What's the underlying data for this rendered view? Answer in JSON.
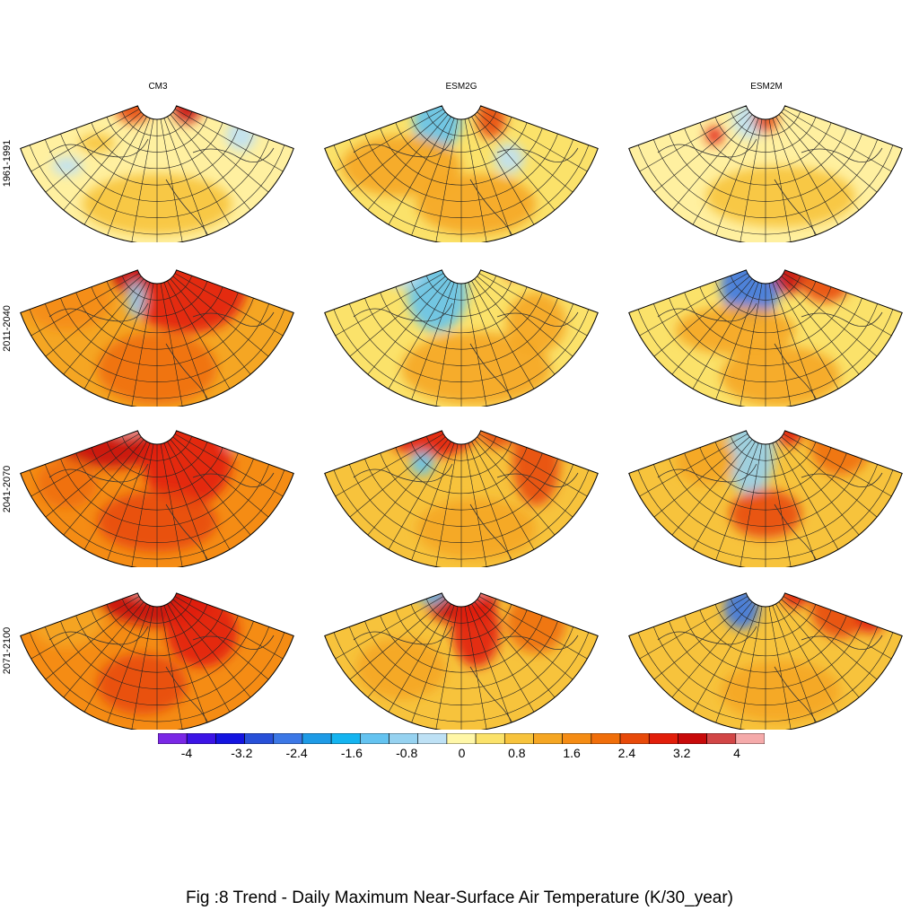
{
  "caption": "Fig :8  Trend  - Daily Maximum Near-Surface Air Temperature (K/30_year)",
  "columns": [
    "CM3",
    "ESM2G",
    "ESM2M"
  ],
  "rows": [
    "1961-1991",
    "2011-2040",
    "2041-2070",
    "2071-2100"
  ],
  "colorbar": {
    "ticks": [
      "-4",
      "-3.2",
      "-2.4",
      "-1.6",
      "-0.8",
      "0",
      "0.8",
      "1.6",
      "2.4",
      "3.2",
      "4"
    ],
    "colors": [
      "#7a28e6",
      "#3c14e6",
      "#1414e0",
      "#2850d8",
      "#3c78e6",
      "#1e9be6",
      "#14b4f0",
      "#64c3f0",
      "#96d2f0",
      "#bee1f5",
      "#fff7a8",
      "#fbe26a",
      "#f7c33c",
      "#f5a623",
      "#f58c14",
      "#f06e0a",
      "#e84a0a",
      "#e21e0a",
      "#c80a0a",
      "#d24646",
      "#f5aaaa"
    ]
  },
  "panels": [
    {
      "row": 0,
      "col": 0,
      "base": "#fff0a0",
      "blobs": [
        [
          0.42,
          0.12,
          0.06,
          0.05,
          "#e84a0a"
        ],
        [
          0.6,
          0.1,
          0.05,
          0.06,
          "#c80a0a"
        ],
        [
          0.3,
          0.35,
          0.06,
          0.03,
          "#f7c33c"
        ],
        [
          0.5,
          0.75,
          0.25,
          0.1,
          "#f7c33c"
        ],
        [
          0.78,
          0.3,
          0.05,
          0.05,
          "#bee1f5"
        ],
        [
          0.2,
          0.5,
          0.05,
          0.03,
          "#bee1f5"
        ]
      ]
    },
    {
      "row": 0,
      "col": 1,
      "base": "#fbe26a",
      "blobs": [
        [
          0.42,
          0.2,
          0.08,
          0.1,
          "#64c3f0"
        ],
        [
          0.3,
          0.5,
          0.2,
          0.1,
          "#f5a623"
        ],
        [
          0.6,
          0.18,
          0.05,
          0.07,
          "#e84a0a"
        ],
        [
          0.55,
          0.75,
          0.2,
          0.1,
          "#f5a623"
        ],
        [
          0.66,
          0.45,
          0.05,
          0.05,
          "#bee1f5"
        ]
      ]
    },
    {
      "row": 0,
      "col": 2,
      "base": "#fff0a0",
      "blobs": [
        [
          0.33,
          0.3,
          0.03,
          0.03,
          "#e21e0a"
        ],
        [
          0.45,
          0.2,
          0.06,
          0.06,
          "#bee1f5"
        ],
        [
          0.82,
          0.15,
          0.07,
          0.05,
          "#bee1f5"
        ],
        [
          0.55,
          0.7,
          0.25,
          0.1,
          "#f7c33c"
        ],
        [
          0.5,
          0.2,
          0.04,
          0.04,
          "#e84a0a"
        ]
      ]
    },
    {
      "row": 1,
      "col": 0,
      "base": "#f5a623",
      "blobs": [
        [
          0.6,
          0.22,
          0.2,
          0.15,
          "#e21e0a"
        ],
        [
          0.42,
          0.12,
          0.08,
          0.07,
          "#c80a0a"
        ],
        [
          0.5,
          0.75,
          0.2,
          0.12,
          "#f06e0a"
        ],
        [
          0.43,
          0.3,
          0.03,
          0.06,
          "#96d2f0"
        ],
        [
          0.2,
          0.3,
          0.15,
          0.1,
          "#f58c14"
        ]
      ]
    },
    {
      "row": 1,
      "col": 1,
      "base": "#fbe26a",
      "blobs": [
        [
          0.42,
          0.25,
          0.1,
          0.13,
          "#64c3f0"
        ],
        [
          0.3,
          0.12,
          0.07,
          0.05,
          "#bee1f5"
        ],
        [
          0.55,
          0.75,
          0.25,
          0.12,
          "#f5a623"
        ],
        [
          0.75,
          0.45,
          0.1,
          0.1,
          "#f5a623"
        ],
        [
          0.67,
          0.1,
          0.02,
          0.03,
          "#e21e0a"
        ]
      ]
    },
    {
      "row": 1,
      "col": 2,
      "base": "#fbe26a",
      "blobs": [
        [
          0.45,
          0.2,
          0.1,
          0.12,
          "#3c78e6"
        ],
        [
          0.58,
          0.1,
          0.06,
          0.08,
          "#c80a0a"
        ],
        [
          0.7,
          0.2,
          0.08,
          0.06,
          "#e84a0a"
        ],
        [
          0.4,
          0.5,
          0.2,
          0.08,
          "#f5a623"
        ],
        [
          0.55,
          0.8,
          0.2,
          0.1,
          "#f5a623"
        ]
      ]
    },
    {
      "row": 2,
      "col": 0,
      "base": "#f58c14",
      "blobs": [
        [
          0.35,
          0.15,
          0.2,
          0.1,
          "#c80a0a"
        ],
        [
          0.6,
          0.3,
          0.15,
          0.15,
          "#e21e0a"
        ],
        [
          0.5,
          0.7,
          0.2,
          0.1,
          "#e84a0a"
        ],
        [
          0.4,
          0.06,
          0.08,
          0.04,
          "#f5aaaa"
        ],
        [
          0.75,
          0.12,
          0.03,
          0.06,
          "#f5aaaa"
        ],
        [
          0.2,
          0.45,
          0.1,
          0.08,
          "#f06e0a"
        ]
      ]
    },
    {
      "row": 2,
      "col": 1,
      "base": "#f7c33c",
      "blobs": [
        [
          0.4,
          0.12,
          0.15,
          0.08,
          "#e21e0a"
        ],
        [
          0.75,
          0.3,
          0.08,
          0.15,
          "#e84a0a"
        ],
        [
          0.37,
          0.32,
          0.04,
          0.04,
          "#64c3f0"
        ],
        [
          0.55,
          0.75,
          0.2,
          0.1,
          "#f5a623"
        ],
        [
          0.62,
          0.1,
          0.06,
          0.06,
          "#e84a0a"
        ]
      ]
    },
    {
      "row": 2,
      "col": 2,
      "base": "#f7c33c",
      "blobs": [
        [
          0.45,
          0.25,
          0.08,
          0.14,
          "#96d2f0"
        ],
        [
          0.5,
          0.65,
          0.12,
          0.08,
          "#e84a0a"
        ],
        [
          0.75,
          0.2,
          0.1,
          0.1,
          "#f06e0a"
        ],
        [
          0.58,
          0.1,
          0.05,
          0.05,
          "#e21e0a"
        ],
        [
          0.3,
          0.3,
          0.1,
          0.08,
          "#f5a623"
        ]
      ]
    },
    {
      "row": 3,
      "col": 0,
      "base": "#f58c14",
      "blobs": [
        [
          0.5,
          0.12,
          0.2,
          0.1,
          "#c80a0a"
        ],
        [
          0.45,
          0.7,
          0.15,
          0.1,
          "#e84a0a"
        ],
        [
          0.65,
          0.35,
          0.12,
          0.12,
          "#e21e0a"
        ],
        [
          0.44,
          0.04,
          0.05,
          0.04,
          "#f5aaaa"
        ],
        [
          0.2,
          0.3,
          0.12,
          0.08,
          "#f5a623"
        ]
      ]
    },
    {
      "row": 3,
      "col": 1,
      "base": "#f7c33c",
      "blobs": [
        [
          0.5,
          0.15,
          0.12,
          0.08,
          "#c80a0a"
        ],
        [
          0.55,
          0.35,
          0.08,
          0.12,
          "#e21e0a"
        ],
        [
          0.4,
          0.1,
          0.05,
          0.04,
          "#64c3f0"
        ],
        [
          0.55,
          0.04,
          0.07,
          0.04,
          "#f5aaaa"
        ],
        [
          0.3,
          0.6,
          0.15,
          0.1,
          "#f5a623"
        ],
        [
          0.75,
          0.3,
          0.1,
          0.1,
          "#f06e0a"
        ]
      ]
    },
    {
      "row": 3,
      "col": 2,
      "base": "#f7c33c",
      "blobs": [
        [
          0.42,
          0.2,
          0.06,
          0.07,
          "#3c78e6"
        ],
        [
          0.75,
          0.2,
          0.1,
          0.1,
          "#e84a0a"
        ],
        [
          0.6,
          0.1,
          0.05,
          0.05,
          "#e21e0a"
        ],
        [
          0.55,
          0.75,
          0.2,
          0.1,
          "#f5a623"
        ],
        [
          0.85,
          0.25,
          0.05,
          0.06,
          "#e21e0a"
        ]
      ]
    }
  ]
}
